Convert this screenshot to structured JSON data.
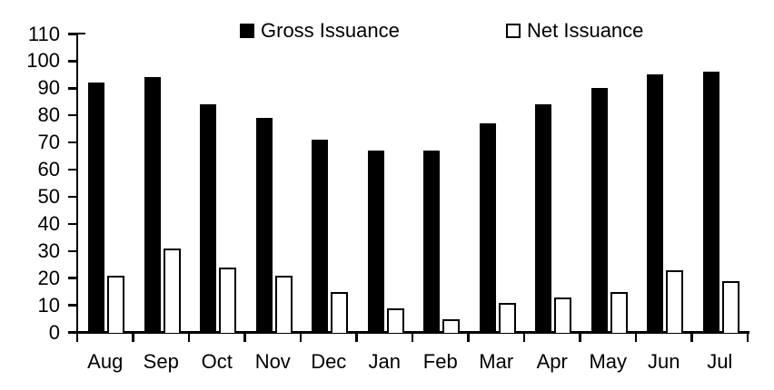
{
  "legend": {
    "items": [
      {
        "label": "Gross Issuance",
        "swatch": "filled-black-square"
      },
      {
        "label": "Net Issuance",
        "swatch": "open-white-square"
      }
    ]
  },
  "chart_data": {
    "type": "bar",
    "title": "",
    "xlabel": "",
    "ylabel": "",
    "categories": [
      "Aug",
      "Sep",
      "Oct",
      "Nov",
      "Dec",
      "Jan",
      "Feb",
      "Mar",
      "Apr",
      "May",
      "Jun",
      "Jul"
    ],
    "series": [
      {
        "name": "Gross Issuance",
        "style": "filled",
        "fill": "#000000",
        "values": [
          92,
          94,
          84,
          79,
          71,
          67,
          67,
          77,
          84,
          90,
          95,
          96
        ]
      },
      {
        "name": "Net Issuance",
        "style": "outline",
        "fill": "#ffffff",
        "stroke": "#000000",
        "values": [
          21,
          31,
          24,
          21,
          15,
          9,
          5,
          11,
          13,
          15,
          23,
          19
        ]
      }
    ],
    "ylim": [
      0,
      110
    ],
    "ytick_step": 10,
    "yticks": [
      0,
      10,
      20,
      30,
      40,
      50,
      60,
      70,
      80,
      90,
      100,
      110
    ],
    "grid": false,
    "legend_position": "top-center",
    "colors": {
      "background": "#ffffff",
      "axis": "#000000",
      "text": "#000000"
    }
  }
}
